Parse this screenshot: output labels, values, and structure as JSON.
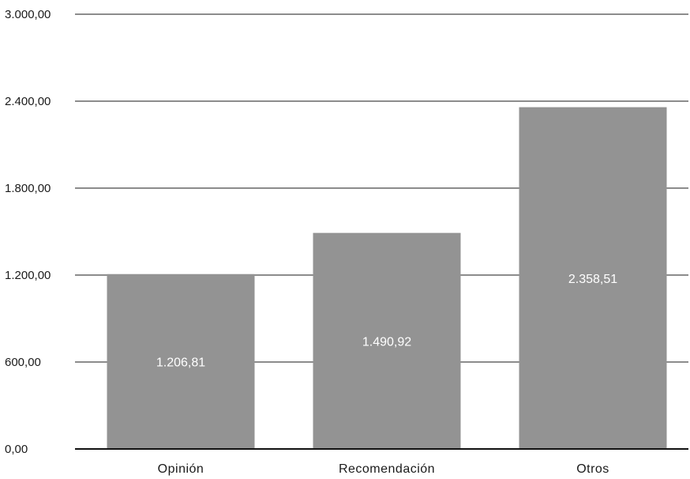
{
  "chart_data": {
    "type": "bar",
    "title": "",
    "xlabel": "",
    "ylabel": "",
    "categories": [
      "Opinión",
      "Recomendación",
      "Otros"
    ],
    "values": [
      1206.81,
      1490.92,
      2358.51
    ],
    "data_labels": [
      "1.206,81",
      "1.490,92",
      "2.358,51"
    ],
    "ylim": [
      0,
      3000
    ],
    "yticks": [
      0,
      600,
      1200,
      1800,
      2400,
      3000
    ],
    "ytick_labels": [
      "0,00",
      "600,00",
      "1.200,00",
      "1.800,00",
      "2.400,00",
      "3.000,00"
    ],
    "grid": true,
    "legend": "none",
    "colors": {
      "bar": "#939393",
      "grid": "#8c8c8c",
      "axis": "#111111",
      "data_label": "#ffffff"
    }
  }
}
